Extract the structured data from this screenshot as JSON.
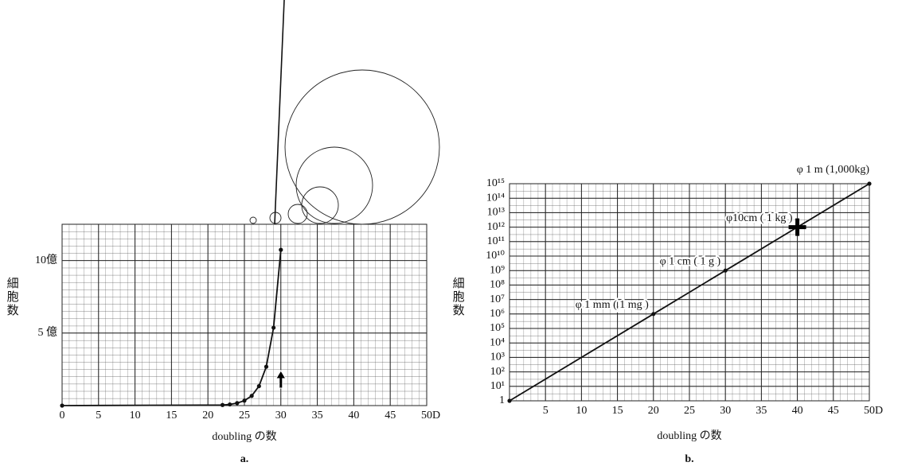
{
  "chart_data": [
    {
      "type": "line",
      "subtitle": "a.",
      "x_label": "doubling の数",
      "y_label": "細胞数",
      "x_unit": "D",
      "xlim": [
        0,
        50
      ],
      "xticks": [
        0,
        5,
        10,
        15,
        20,
        25,
        30,
        35,
        40,
        45,
        50
      ],
      "ylim": [
        0,
        12.5
      ],
      "yticks": [
        {
          "value": 5,
          "label": "5 億"
        },
        {
          "value": 10,
          "label": "10億"
        }
      ],
      "grid": true,
      "log_y": false,
      "arrow_x": 30,
      "series": [
        {
          "color": "#111111",
          "x": [
            0,
            22,
            23,
            24,
            25,
            26,
            27,
            28,
            29,
            30
          ],
          "values": [
            0,
            0.04,
            0.08,
            0.17,
            0.34,
            0.67,
            1.34,
            2.68,
            5.37,
            10.74
          ]
        }
      ]
    },
    {
      "type": "line",
      "subtitle": "b.",
      "x_label": "doubling の数",
      "y_label": "細胞数",
      "x_unit": "D",
      "xlim": [
        0,
        50
      ],
      "xticks": [
        5,
        10,
        15,
        20,
        25,
        30,
        35,
        40,
        45,
        50
      ],
      "ylim": [
        1,
        1000000000000000
      ],
      "yticks": [
        1,
        {
          "value": 10,
          "label": "10¹"
        },
        {
          "value": 100,
          "label": "10²"
        },
        {
          "value": 1000,
          "label": "10³"
        },
        {
          "value": 10000,
          "label": "10⁴"
        },
        {
          "value": 100000,
          "label": "10⁵"
        },
        {
          "value": 1000000,
          "label": "10⁶"
        },
        {
          "value": 10000000,
          "label": "10⁷"
        },
        {
          "value": 100000000,
          "label": "10⁸"
        },
        {
          "value": 1000000000,
          "label": "10⁹"
        },
        {
          "value": 10000000000,
          "label": "10¹⁰"
        },
        {
          "value": 100000000000,
          "label": "10¹¹"
        },
        {
          "value": 1000000000000,
          "label": "10¹²"
        },
        {
          "value": 10000000000000,
          "label": "10¹³"
        },
        {
          "value": 100000000000000,
          "label": "10¹⁴"
        },
        {
          "value": 1000000000000000,
          "label": "10¹⁵"
        }
      ],
      "grid": true,
      "log_y": true,
      "highlight_x": 40,
      "series": [
        {
          "color": "#111111",
          "x": [
            0,
            20,
            30,
            40,
            50
          ],
          "values": [
            1,
            1000000,
            1000000000,
            1000000000000,
            1000000000000000
          ],
          "labels": [
            null,
            "φ 1 mm ( 1 mg )",
            "φ 1 cm ( 1 g )",
            "φ10cm ( 1 kg )",
            "φ 1 m (1,000kg)"
          ]
        }
      ]
    }
  ]
}
